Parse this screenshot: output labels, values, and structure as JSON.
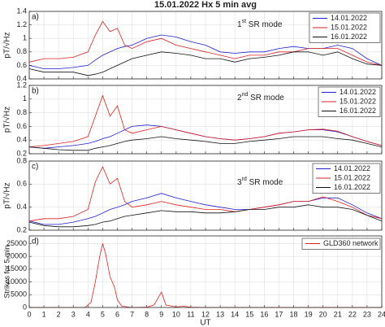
{
  "chart_data": [
    {
      "type": "line",
      "title": "15.01.2022    Hx    5 min avg",
      "label": "a)",
      "annotation": {
        "text": "1",
        "sup": "st",
        "rest": " SR mode"
      },
      "ylabel": "pT/√Hz",
      "xlim": [
        0,
        24
      ],
      "ylim": [
        0.4,
        1.4
      ],
      "yticks": [
        0.4,
        0.6,
        0.8,
        1,
        1.2,
        1.4
      ],
      "grid": true,
      "x": [
        0,
        1,
        2,
        3,
        4,
        4.5,
        5,
        5.5,
        6,
        6.5,
        7,
        8,
        9,
        10,
        11,
        12,
        13,
        14,
        15,
        16,
        17,
        18,
        19,
        20,
        21,
        22,
        23,
        24
      ],
      "series": [
        {
          "name": "14.01.2022",
          "color": "#1f1fd0",
          "values": [
            0.6,
            0.55,
            0.55,
            0.57,
            0.6,
            0.68,
            0.75,
            0.8,
            0.85,
            0.88,
            0.9,
            1.0,
            1.05,
            1.02,
            0.95,
            0.9,
            0.8,
            0.78,
            0.8,
            0.8,
            0.85,
            0.88,
            0.85,
            0.85,
            0.9,
            0.85,
            0.7,
            0.6
          ]
        },
        {
          "name": "15.01.2022",
          "color": "#e02020",
          "values": [
            0.65,
            0.7,
            0.7,
            0.72,
            0.8,
            1.05,
            1.25,
            1.1,
            1.15,
            0.9,
            0.85,
            0.95,
            1.0,
            0.9,
            0.85,
            0.8,
            0.75,
            0.7,
            0.75,
            0.75,
            0.8,
            0.8,
            0.85,
            0.85,
            0.85,
            0.75,
            0.65,
            0.6
          ]
        },
        {
          "name": "16.01.2022",
          "color": "#111111",
          "values": [
            0.55,
            0.5,
            0.5,
            0.5,
            0.45,
            0.47,
            0.5,
            0.55,
            0.6,
            0.65,
            0.7,
            0.75,
            0.8,
            0.78,
            0.75,
            0.7,
            0.7,
            0.65,
            0.7,
            0.72,
            0.75,
            0.8,
            0.8,
            0.75,
            0.8,
            0.7,
            0.62,
            0.6
          ]
        }
      ]
    },
    {
      "type": "line",
      "label": "b)",
      "annotation": {
        "text": "2",
        "sup": "nd",
        "rest": " SR mode"
      },
      "ylabel": "pT/√Hz",
      "xlim": [
        0,
        24
      ],
      "ylim": [
        0.2,
        1.2
      ],
      "yticks": [
        0.2,
        0.4,
        0.6,
        0.8,
        1,
        1.2
      ],
      "grid": true,
      "x": [
        0,
        1,
        2,
        3,
        4,
        4.5,
        5,
        5.5,
        6,
        6.5,
        7,
        8,
        9,
        10,
        11,
        12,
        13,
        14,
        15,
        16,
        17,
        18,
        19,
        20,
        21,
        22,
        23,
        24
      ],
      "series": [
        {
          "name": "14.01.2022",
          "color": "#1f1fd0",
          "values": [
            0.3,
            0.28,
            0.3,
            0.32,
            0.35,
            0.38,
            0.42,
            0.45,
            0.5,
            0.55,
            0.6,
            0.62,
            0.6,
            0.55,
            0.5,
            0.45,
            0.42,
            0.4,
            0.42,
            0.45,
            0.5,
            0.52,
            0.55,
            0.55,
            0.52,
            0.45,
            0.38,
            0.32
          ]
        },
        {
          "name": "15.01.2022",
          "color": "#e02020",
          "values": [
            0.3,
            0.32,
            0.35,
            0.38,
            0.45,
            0.75,
            1.05,
            0.75,
            0.9,
            0.55,
            0.5,
            0.55,
            0.6,
            0.55,
            0.5,
            0.45,
            0.42,
            0.4,
            0.42,
            0.45,
            0.5,
            0.52,
            0.55,
            0.56,
            0.53,
            0.45,
            0.38,
            0.32
          ]
        },
        {
          "name": "16.01.2022",
          "color": "#111111",
          "values": [
            0.3,
            0.28,
            0.26,
            0.25,
            0.25,
            0.28,
            0.3,
            0.32,
            0.35,
            0.38,
            0.4,
            0.42,
            0.45,
            0.42,
            0.4,
            0.38,
            0.35,
            0.35,
            0.38,
            0.4,
            0.42,
            0.45,
            0.45,
            0.45,
            0.42,
            0.4,
            0.35,
            0.3
          ]
        }
      ]
    },
    {
      "type": "line",
      "label": "c)",
      "annotation": {
        "text": "3",
        "sup": "rd",
        "rest": " SR mode"
      },
      "ylabel": "pT/√Hz",
      "xlim": [
        0,
        24
      ],
      "ylim": [
        0.2,
        0.8
      ],
      "yticks": [
        0.2,
        0.4,
        0.6,
        0.8
      ],
      "grid": true,
      "x": [
        0,
        1,
        2,
        3,
        4,
        4.5,
        5,
        5.5,
        6,
        6.5,
        7,
        8,
        9,
        10,
        11,
        12,
        13,
        14,
        15,
        16,
        17,
        18,
        19,
        20,
        21,
        22,
        23,
        24
      ],
      "series": [
        {
          "name": "14.01.2022",
          "color": "#1f1fd0",
          "values": [
            0.28,
            0.25,
            0.25,
            0.27,
            0.3,
            0.32,
            0.35,
            0.38,
            0.4,
            0.42,
            0.45,
            0.48,
            0.52,
            0.48,
            0.45,
            0.42,
            0.4,
            0.38,
            0.38,
            0.4,
            0.42,
            0.45,
            0.45,
            0.48,
            0.48,
            0.42,
            0.35,
            0.3
          ]
        },
        {
          "name": "15.01.2022",
          "color": "#e02020",
          "values": [
            0.28,
            0.3,
            0.3,
            0.32,
            0.38,
            0.62,
            0.75,
            0.6,
            0.65,
            0.45,
            0.4,
            0.42,
            0.45,
            0.42,
            0.4,
            0.38,
            0.38,
            0.36,
            0.38,
            0.4,
            0.42,
            0.45,
            0.45,
            0.49,
            0.45,
            0.4,
            0.33,
            0.3
          ]
        },
        {
          "name": "16.01.2022",
          "color": "#111111",
          "values": [
            0.27,
            0.24,
            0.23,
            0.23,
            0.24,
            0.25,
            0.27,
            0.28,
            0.3,
            0.32,
            0.33,
            0.35,
            0.37,
            0.36,
            0.36,
            0.35,
            0.35,
            0.36,
            0.38,
            0.38,
            0.4,
            0.4,
            0.42,
            0.4,
            0.4,
            0.38,
            0.33,
            0.28
          ]
        }
      ]
    },
    {
      "type": "line",
      "label": "d)",
      "ylabel": "Strikes for 5 min",
      "xlabel": "UT",
      "xlim": [
        0,
        24
      ],
      "ylim": [
        0,
        28000
      ],
      "yticks": [
        0,
        5000,
        10000,
        15000,
        20000,
        25000
      ],
      "xticks": [
        0,
        1,
        2,
        3,
        4,
        5,
        6,
        7,
        8,
        9,
        10,
        11,
        12,
        13,
        14,
        15,
        16,
        17,
        18,
        19,
        20,
        21,
        22,
        23,
        24
      ],
      "grid": true,
      "x": [
        0,
        1,
        2,
        3,
        3.8,
        4.2,
        4.5,
        4.8,
        5,
        5.2,
        5.5,
        5.8,
        6,
        6.3,
        7,
        8,
        8.5,
        8.8,
        9,
        9.3,
        10,
        10.5,
        11,
        12,
        24
      ],
      "series": [
        {
          "name": "GLD360 network",
          "color": "#e02020",
          "values": [
            0,
            0,
            0,
            0,
            0,
            2000,
            10000,
            20000,
            25000,
            21000,
            12000,
            8000,
            3000,
            500,
            0,
            100,
            1000,
            4000,
            6000,
            1000,
            200,
            500,
            100,
            0,
            0
          ]
        }
      ]
    }
  ]
}
